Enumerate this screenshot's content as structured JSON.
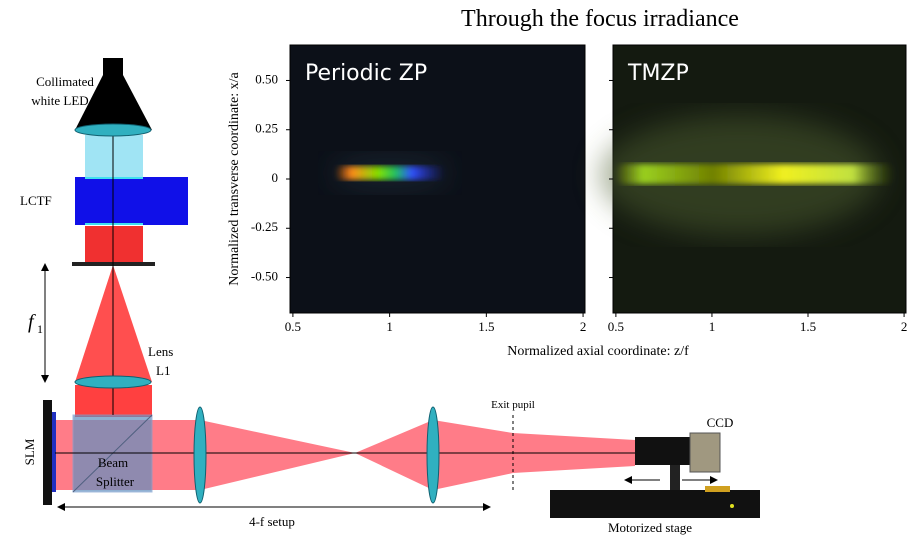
{
  "title": "Through the focus irradiance",
  "panels": [
    {
      "label": "Periodic ZP"
    },
    {
      "label": "TMZP"
    }
  ],
  "xlabel": "Normalized axial coordinate: z/f",
  "ylabel": "Normalized transverse coordinate: x/a",
  "xlim": [
    0.485,
    2.01
  ],
  "xticks": [
    0.5,
    1,
    1.5,
    2
  ],
  "ylim": [
    -0.68,
    0.68
  ],
  "yticks": [
    {
      "value": 0.5,
      "label": "0.50"
    },
    0.25,
    0,
    -0.25,
    {
      "value": -0.5,
      "label": "-0.50"
    }
  ],
  "setup": {
    "led": [
      "Collimated",
      "white LED"
    ],
    "filter": "LCTF",
    "focal": "f",
    "focal_sub": "1",
    "lens": [
      "Lens",
      "L1"
    ],
    "slm": "SLM",
    "splitter": [
      "Beam",
      "Splitter"
    ],
    "fourf": "4-f setup",
    "pupil": "Exit pupil",
    "ccd": "CCD",
    "stage": "Motorized stage"
  }
}
